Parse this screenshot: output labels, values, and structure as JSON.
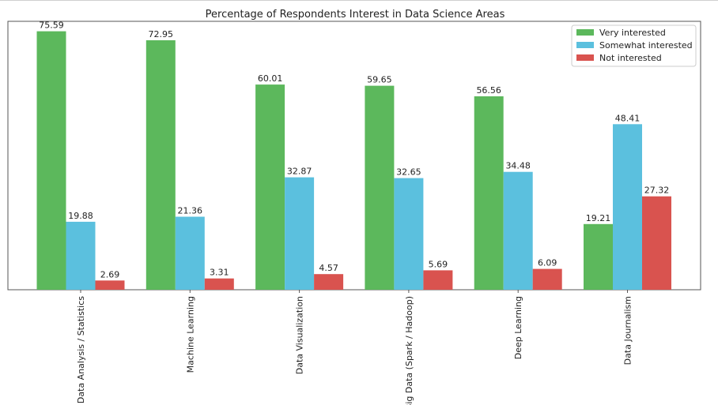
{
  "chart_data": {
    "type": "bar",
    "title": "Percentage of Respondents Interest in Data Science Areas",
    "xlabel": "",
    "ylabel": "",
    "ylim": [
      0,
      78.5
    ],
    "grid": false,
    "legend_position": "top-right",
    "categories": [
      "Data Analysis / Statistics",
      "Machine Learning",
      "Data Visualization",
      "Big Data (Spark / Hadoop)",
      "Deep Learning",
      "Data Journalism"
    ],
    "series": [
      {
        "name": "Very interested",
        "color": "#5cb85c",
        "values": [
          75.59,
          72.95,
          60.01,
          59.65,
          56.56,
          19.21
        ]
      },
      {
        "name": "Somewhat interested",
        "color": "#5bc0de",
        "values": [
          19.88,
          21.36,
          32.87,
          32.65,
          34.48,
          48.41
        ]
      },
      {
        "name": "Not interested",
        "color": "#d9534f",
        "values": [
          2.69,
          3.31,
          4.57,
          5.69,
          6.09,
          27.32
        ]
      }
    ],
    "data_labels": [
      [
        "75.59",
        "72.95",
        "60.01",
        "59.65",
        "56.56",
        "19.21"
      ],
      [
        "19.88",
        "21.36",
        "32.87",
        "32.65",
        "34.48",
        "48.41"
      ],
      [
        "2.69",
        "3.31",
        "4.57",
        "5.69",
        "6.09",
        "27.32"
      ]
    ]
  }
}
